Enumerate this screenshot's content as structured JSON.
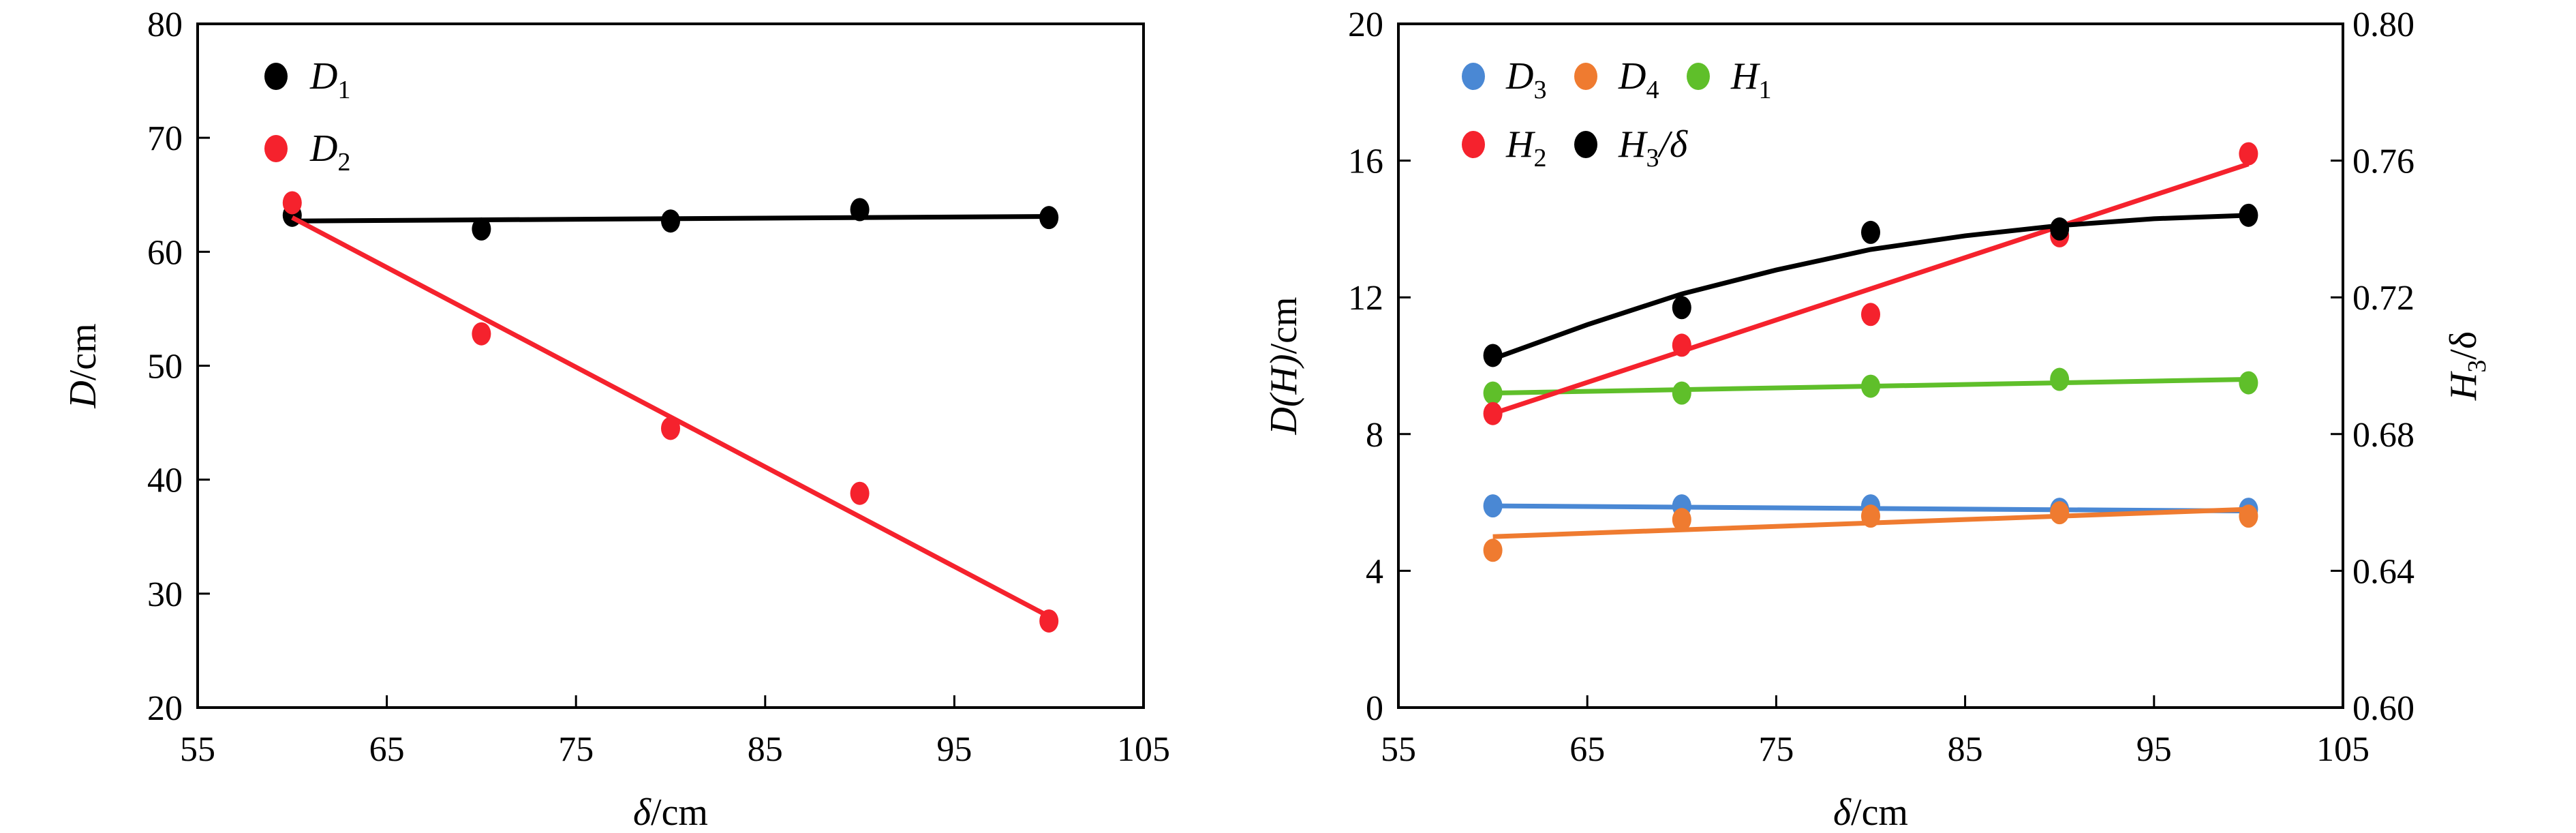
{
  "chart_data": [
    {
      "type": "scatter",
      "title": "",
      "xlabel": "δ/cm",
      "ylabel": "D/cm",
      "xlim": [
        55,
        105
      ],
      "ylim": [
        20,
        80
      ],
      "xticks": [
        "55",
        "65",
        "75",
        "85",
        "95",
        "105"
      ],
      "yticks": [
        "20",
        "30",
        "40",
        "50",
        "60",
        "70",
        "80"
      ],
      "legend_position": "top-left",
      "x": [
        60,
        70,
        80,
        90,
        100
      ],
      "series": [
        {
          "name": "D1",
          "label_main": "D",
          "label_sub": "1",
          "color": "#000000",
          "values": [
            63.2,
            62.0,
            62.7,
            63.7,
            63.0
          ],
          "fit": "linear",
          "fit_line": [
            62.7,
            63.1
          ]
        },
        {
          "name": "D2",
          "label_main": "D",
          "label_sub": "2",
          "color": "#f5222d",
          "values": [
            64.3,
            52.8,
            44.5,
            38.8,
            27.6
          ],
          "fit": "linear",
          "fit_line": [
            63.0,
            28.0
          ]
        }
      ]
    },
    {
      "type": "scatter",
      "title": "",
      "xlabel": "δ/cm",
      "ylabel": "D(H)/cm",
      "y2label": "H3/δ",
      "xlim": [
        55,
        105
      ],
      "ylim": [
        0,
        20
      ],
      "y2lim": [
        0.6,
        0.8
      ],
      "xticks": [
        "55",
        "65",
        "75",
        "85",
        "95",
        "105"
      ],
      "yticks": [
        "0",
        "4",
        "8",
        "12",
        "16",
        "20"
      ],
      "y2ticks": [
        "0.60",
        "0.64",
        "0.68",
        "0.72",
        "0.76",
        "0.80"
      ],
      "legend_position": "top-left",
      "x": [
        60,
        70,
        80,
        90,
        100
      ],
      "series": [
        {
          "name": "D3",
          "label_main": "D",
          "label_sub": "3",
          "label_tail": "",
          "color": "#4a88d4",
          "axis": "left",
          "values": [
            5.9,
            5.9,
            5.9,
            5.8,
            5.8
          ],
          "fit": "linear",
          "fit_line": [
            5.9,
            5.75
          ]
        },
        {
          "name": "D4",
          "label_main": "D",
          "label_sub": "4",
          "label_tail": "",
          "color": "#ef7b30",
          "axis": "left",
          "values": [
            4.6,
            5.5,
            5.6,
            5.7,
            5.6
          ],
          "fit": "linear",
          "fit_line": [
            5.0,
            5.8
          ]
        },
        {
          "name": "H1",
          "label_main": "H",
          "label_sub": "1",
          "label_tail": "",
          "color": "#5fbf2a",
          "axis": "left",
          "values": [
            9.2,
            9.2,
            9.4,
            9.6,
            9.5
          ],
          "fit": "linear",
          "fit_line": [
            9.2,
            9.6
          ]
        },
        {
          "name": "H2",
          "label_main": "H",
          "label_sub": "2",
          "label_tail": "",
          "color": "#f5222d",
          "axis": "left",
          "values": [
            8.6,
            10.6,
            11.5,
            13.8,
            16.2
          ],
          "fit": "linear",
          "fit_line": [
            8.6,
            15.9
          ]
        },
        {
          "name": "H3/δ",
          "label_main": "H",
          "label_sub": "3",
          "label_tail": "/δ",
          "color": "#000000",
          "axis": "right",
          "values": [
            0.703,
            0.717,
            0.739,
            0.74,
            0.744
          ],
          "fit": "quadratic",
          "fit_curve": [
            [
              60,
              0.702
            ],
            [
              65,
              0.712
            ],
            [
              70,
              0.721
            ],
            [
              75,
              0.728
            ],
            [
              80,
              0.734
            ],
            [
              85,
              0.738
            ],
            [
              90,
              0.741
            ],
            [
              95,
              0.743
            ],
            [
              100,
              0.744
            ]
          ]
        }
      ]
    }
  ]
}
